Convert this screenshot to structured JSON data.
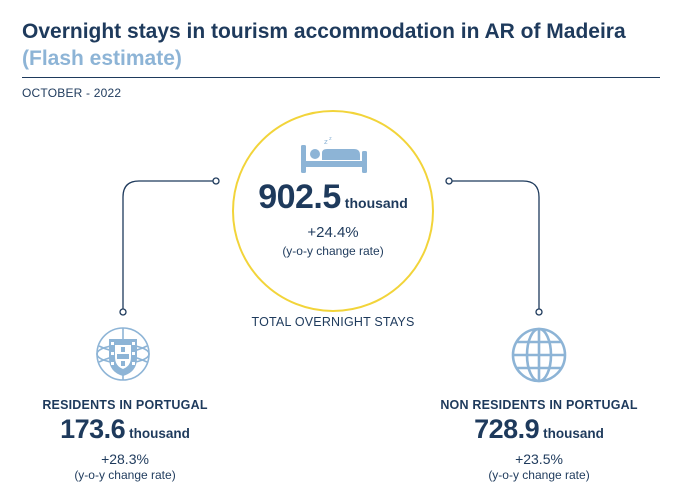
{
  "header": {
    "title": "Overnight stays in tourism accommodation in AR of Madeira",
    "subtitle": "(Flash estimate)",
    "period": "OCTOBER - 2022"
  },
  "total": {
    "value": "902.5",
    "unit": "thousand",
    "rate": "+24.4%",
    "rate_note": "(y-o-y change rate)",
    "label": "TOTAL OVERNIGHT STAYS",
    "icon": "bed-icon"
  },
  "residents": {
    "label": "RESIDENTS IN PORTUGAL",
    "value": "173.6",
    "unit": "thousand",
    "rate": "+28.3%",
    "rate_note": "(y-o-y change rate)",
    "icon": "portugal-coat-of-arms-icon"
  },
  "non_residents": {
    "label": "NON RESIDENTS IN PORTUGAL",
    "value": "728.9",
    "unit": "thousand",
    "rate": "+23.5%",
    "rate_note": "(y-o-y change rate)",
    "icon": "globe-icon"
  },
  "colors": {
    "navy": "#1e3a5c",
    "light_blue": "#8db4d6",
    "circle_yellow": "#f2d43a"
  }
}
